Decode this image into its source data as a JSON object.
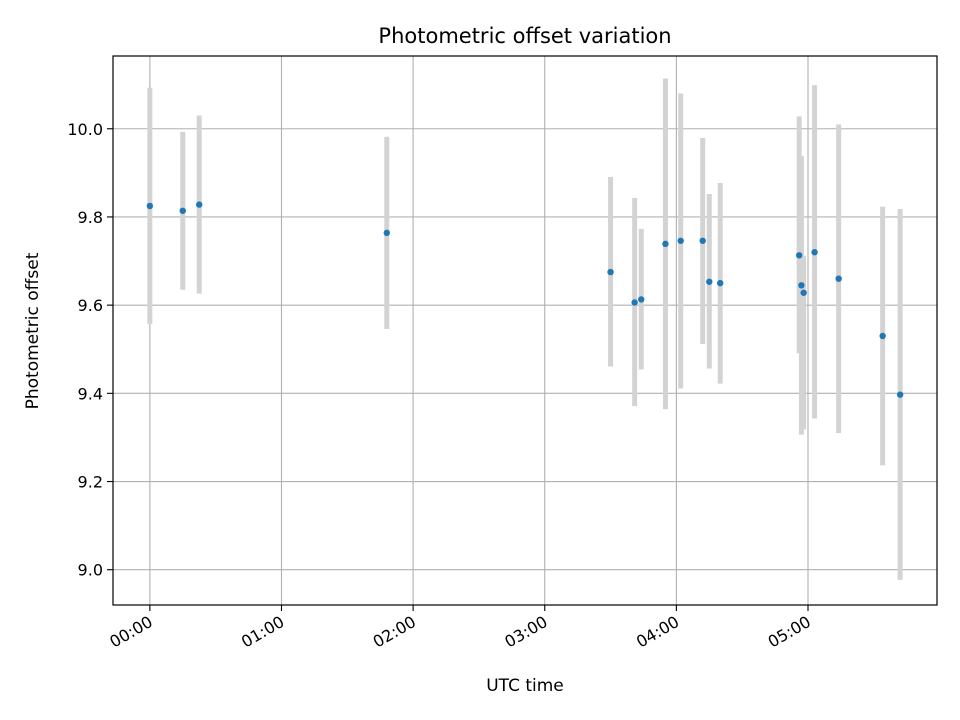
{
  "chart_data": {
    "type": "scatter",
    "title": "Photometric offset variation",
    "xlabel": "UTC time",
    "ylabel": "Photometric offset",
    "xlim_hours": [
      -0.28,
      5.98
    ],
    "ylim": [
      8.92,
      10.165
    ],
    "x_ticks": [
      {
        "hours": 0,
        "label": "00:00"
      },
      {
        "hours": 1,
        "label": "01:00"
      },
      {
        "hours": 2,
        "label": "02:00"
      },
      {
        "hours": 3,
        "label": "03:00"
      },
      {
        "hours": 4,
        "label": "04:00"
      },
      {
        "hours": 5,
        "label": "05:00"
      }
    ],
    "y_ticks": [
      {
        "value": 9.0,
        "label": "9.0"
      },
      {
        "value": 9.2,
        "label": "9.2"
      },
      {
        "value": 9.4,
        "label": "9.4"
      },
      {
        "value": 9.6,
        "label": "9.6"
      },
      {
        "value": 9.8,
        "label": "9.8"
      },
      {
        "value": 10.0,
        "label": "10.0"
      }
    ],
    "grid": true,
    "colors": {
      "point": "#1f77b4",
      "errorbar": "#d3d3d3",
      "grid": "#b0b0b0",
      "axis": "#000000"
    },
    "series": [
      {
        "name": "Photometric offset",
        "points": [
          {
            "x_hours": 0.0,
            "y": 9.825,
            "lo": 9.557,
            "hi": 10.093
          },
          {
            "x_hours": 0.25,
            "y": 9.814,
            "lo": 9.635,
            "hi": 9.993
          },
          {
            "x_hours": 0.375,
            "y": 9.828,
            "lo": 9.626,
            "hi": 10.03
          },
          {
            "x_hours": 1.8,
            "y": 9.764,
            "lo": 9.546,
            "hi": 9.982
          },
          {
            "x_hours": 3.5,
            "y": 9.675,
            "lo": 9.461,
            "hi": 9.891
          },
          {
            "x_hours": 3.683,
            "y": 9.606,
            "lo": 9.371,
            "hi": 9.843
          },
          {
            "x_hours": 3.733,
            "y": 9.613,
            "lo": 9.454,
            "hi": 9.773
          },
          {
            "x_hours": 3.917,
            "y": 9.739,
            "lo": 9.364,
            "hi": 10.114
          },
          {
            "x_hours": 4.033,
            "y": 9.746,
            "lo": 9.411,
            "hi": 10.08
          },
          {
            "x_hours": 4.2,
            "y": 9.746,
            "lo": 9.512,
            "hi": 9.979
          },
          {
            "x_hours": 4.25,
            "y": 9.653,
            "lo": 9.456,
            "hi": 9.852
          },
          {
            "x_hours": 4.333,
            "y": 9.65,
            "lo": 9.422,
            "hi": 9.877
          },
          {
            "x_hours": 4.933,
            "y": 9.713,
            "lo": 9.491,
            "hi": 10.028
          },
          {
            "x_hours": 4.95,
            "y": 9.645,
            "lo": 9.306,
            "hi": 9.938
          },
          {
            "x_hours": 4.967,
            "y": 9.628,
            "lo": 9.318,
            "hi": 9.712
          },
          {
            "x_hours": 5.05,
            "y": 9.72,
            "lo": 9.343,
            "hi": 10.099
          },
          {
            "x_hours": 5.233,
            "y": 9.66,
            "lo": 9.31,
            "hi": 10.01
          },
          {
            "x_hours": 5.567,
            "y": 9.53,
            "lo": 9.237,
            "hi": 9.823
          },
          {
            "x_hours": 5.7,
            "y": 9.397,
            "lo": 8.977,
            "hi": 9.818
          }
        ]
      }
    ]
  }
}
